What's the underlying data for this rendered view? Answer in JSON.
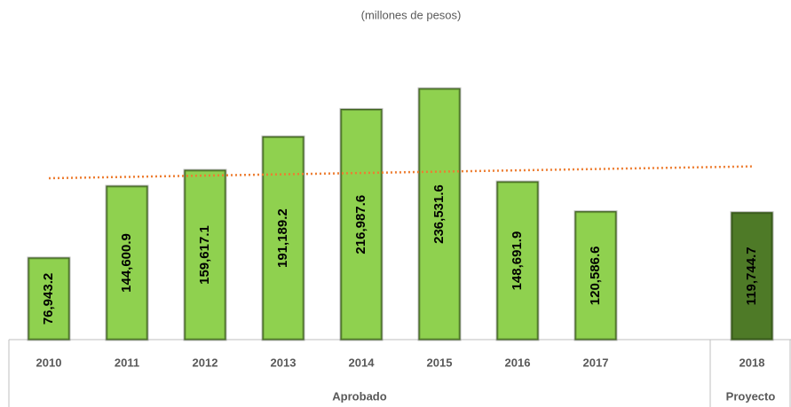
{
  "chart_data": {
    "type": "bar",
    "subtitle": "(millones de pesos)",
    "categories": [
      "2010",
      "2011",
      "2012",
      "2013",
      "2014",
      "2015",
      "2016",
      "2017",
      "2018"
    ],
    "values": [
      76943.2,
      144600.9,
      159617.1,
      191189.2,
      216987.6,
      236531.6,
      148691.9,
      120586.6,
      119744.7
    ],
    "value_labels": [
      "76,943.2",
      "144,600.9",
      "159,617.1",
      "191,189.2",
      "216,987.6",
      "236,531.6",
      "148,691.9",
      "120,586.6",
      "119,744.7"
    ],
    "colors": [
      "#8fd14f",
      "#8fd14f",
      "#8fd14f",
      "#8fd14f",
      "#8fd14f",
      "#8fd14f",
      "#8fd14f",
      "#8fd14f",
      "#4e7a27"
    ],
    "groups": [
      "Aprobado",
      "Proyecto"
    ],
    "trendline": {
      "color": "#ed7d31"
    }
  }
}
